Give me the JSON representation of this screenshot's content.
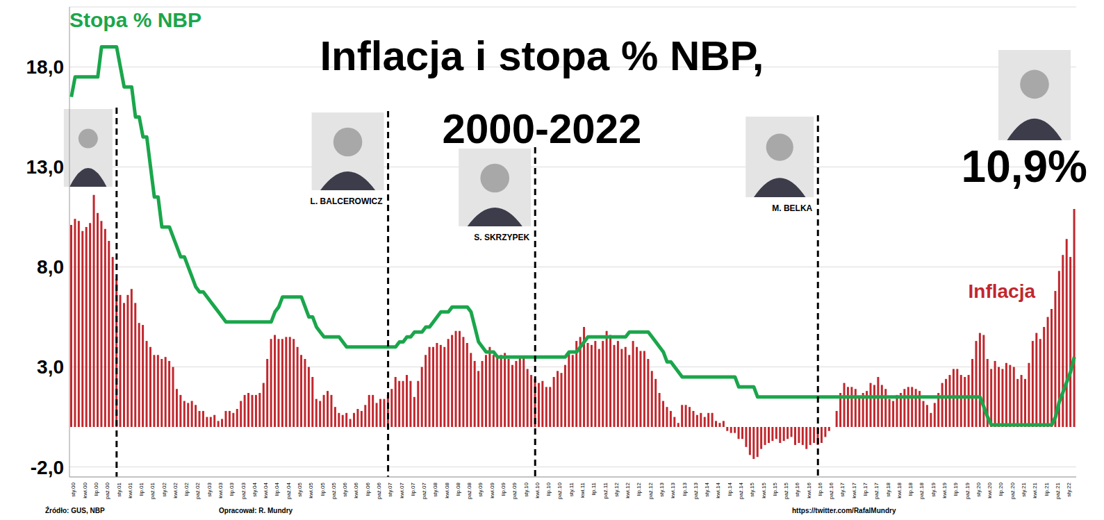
{
  "chart_data": {
    "type": "bar",
    "title": "Inflacja i stopa % NBP, 2000-2022",
    "categories": [
      "sty.00",
      null,
      null,
      "kwi.00",
      null,
      null,
      "lip.00",
      null,
      null,
      "paź.00",
      null,
      null,
      "sty.01",
      null,
      null,
      "kwi.01",
      null,
      null,
      "lip.01",
      null,
      null,
      "paź.01",
      null,
      null,
      "sty.02",
      null,
      null,
      "kwi.02",
      null,
      null,
      "lip.02",
      null,
      null,
      "paź.02",
      null,
      null,
      "sty.03",
      null,
      null,
      "kwi.03",
      null,
      null,
      "lip.03",
      null,
      null,
      "paź.03",
      null,
      null,
      "sty.04",
      null,
      null,
      "kwi.04",
      null,
      null,
      "lip.04",
      null,
      null,
      "paź.04",
      null,
      null,
      "sty.05",
      null,
      null,
      "kwi.05",
      null,
      null,
      "lip.05",
      null,
      null,
      "paź.05",
      null,
      null,
      "sty.06",
      null,
      null,
      "kwi.06",
      null,
      null,
      "lip.06",
      null,
      null,
      "paź.06",
      null,
      null,
      "sty.07",
      null,
      null,
      "kwi.07",
      null,
      null,
      "lip.07",
      null,
      null,
      "paź.07",
      null,
      null,
      "sty.08",
      null,
      null,
      "kwi.08",
      null,
      null,
      "lip.08",
      null,
      null,
      "paź.08",
      null,
      null,
      "sty.09",
      null,
      null,
      "kwi.09",
      null,
      null,
      "lip.09",
      null,
      null,
      "paź.09",
      null,
      null,
      "sty.10",
      null,
      null,
      "kwi.10",
      null,
      null,
      "lip.10",
      null,
      null,
      "paź.10",
      null,
      null,
      "sty.11",
      null,
      null,
      "kwi.11",
      null,
      null,
      "lip.11",
      null,
      null,
      "paź.11",
      null,
      null,
      "sty.12",
      null,
      null,
      "kwi.12",
      null,
      null,
      "lip.12",
      null,
      null,
      "paź.12",
      null,
      null,
      "sty.13",
      null,
      null,
      "kwi.13",
      null,
      null,
      "lip.13",
      null,
      null,
      "paź.13",
      null,
      null,
      "sty.14",
      null,
      null,
      "kwi.14",
      null,
      null,
      "lip.14",
      null,
      null,
      "paź.14",
      null,
      null,
      "sty.15",
      null,
      null,
      "kwi.15",
      null,
      null,
      "lip.15",
      null,
      null,
      "paź.15",
      null,
      null,
      "sty.16",
      null,
      null,
      "kwi.16",
      null,
      null,
      "lip.16",
      null,
      null,
      "paź.16",
      null,
      null,
      "sty.17",
      null,
      null,
      "kwi.17",
      null,
      null,
      "lip.17",
      null,
      null,
      "paź.17",
      null,
      null,
      "sty.18",
      null,
      null,
      "kwi.18",
      null,
      null,
      "lip.18",
      null,
      null,
      "paź.18",
      null,
      null,
      "sty.19",
      null,
      null,
      "kwi.19",
      null,
      null,
      "lip.19",
      null,
      null,
      "paź.19",
      null,
      null,
      "sty.20",
      null,
      null,
      "kwi.20",
      null,
      null,
      "lip.20",
      null,
      null,
      "paź.20",
      null,
      null,
      "sty.21",
      null,
      null,
      "kwi.21",
      null,
      null,
      "lip.21",
      null,
      null,
      "paź.21",
      null,
      null,
      "sty.22",
      null,
      null
    ],
    "series": [
      {
        "name": "Inflacja",
        "type": "bar",
        "color": "#c1272d",
        "values": [
          10.1,
          10.4,
          10.3,
          9.8,
          10.0,
          10.2,
          11.6,
          10.7,
          10.3,
          9.9,
          9.3,
          8.5,
          7.4,
          6.6,
          6.2,
          6.6,
          6.9,
          6.2,
          5.2,
          5.1,
          4.3,
          4.0,
          3.6,
          3.6,
          3.4,
          3.5,
          3.3,
          3.0,
          1.9,
          1.6,
          1.3,
          1.2,
          1.3,
          1.1,
          0.8,
          0.8,
          0.5,
          0.5,
          0.6,
          0.3,
          0.4,
          0.8,
          0.8,
          0.7,
          0.9,
          1.3,
          1.6,
          1.7,
          1.6,
          1.6,
          1.7,
          2.2,
          3.4,
          4.4,
          4.6,
          4.4,
          4.4,
          4.5,
          4.5,
          4.4,
          4.0,
          3.6,
          3.4,
          3.0,
          2.5,
          1.4,
          1.3,
          1.6,
          1.8,
          1.6,
          1.0,
          0.7,
          0.6,
          0.7,
          0.4,
          0.7,
          0.9,
          0.8,
          1.1,
          1.6,
          1.6,
          1.2,
          1.4,
          1.4,
          1.6,
          1.9,
          2.5,
          2.3,
          2.3,
          2.6,
          2.3,
          1.5,
          2.3,
          3.0,
          3.6,
          4.0,
          4.0,
          4.2,
          4.1,
          4.0,
          4.4,
          4.6,
          4.8,
          4.8,
          4.5,
          4.2,
          3.7,
          3.3,
          2.8,
          3.3,
          3.6,
          4.0,
          3.6,
          3.5,
          3.6,
          3.7,
          3.4,
          3.1,
          3.3,
          3.5,
          3.5,
          2.9,
          2.6,
          2.4,
          2.2,
          2.3,
          2.0,
          2.0,
          2.5,
          2.8,
          2.7,
          3.1,
          3.8,
          3.6,
          4.3,
          4.5,
          5.0,
          4.2,
          4.1,
          4.3,
          3.9,
          4.3,
          4.8,
          4.6,
          4.1,
          4.3,
          3.9,
          4.0,
          3.6,
          4.3,
          4.0,
          3.8,
          3.8,
          3.4,
          2.8,
          2.4,
          1.7,
          1.3,
          1.0,
          0.8,
          0.5,
          0.2,
          1.1,
          1.1,
          1.0,
          0.8,
          0.6,
          0.7,
          0.5,
          0.7,
          0.7,
          0.3,
          0.2,
          0.3,
          -0.2,
          -0.3,
          -0.3,
          -0.6,
          -0.6,
          -1.0,
          -1.4,
          -1.6,
          -1.5,
          -1.1,
          -0.9,
          -0.8,
          -0.7,
          -0.6,
          -0.8,
          -0.7,
          -0.6,
          -0.5,
          -0.9,
          -0.8,
          -0.9,
          -1.1,
          -0.9,
          -0.8,
          -0.9,
          -0.8,
          -0.5,
          -0.2,
          0.0,
          0.8,
          1.7,
          2.2,
          2.0,
          2.0,
          1.9,
          1.5,
          1.7,
          1.8,
          2.2,
          2.1,
          2.5,
          2.1,
          1.9,
          1.4,
          1.3,
          1.6,
          1.7,
          1.9,
          2.0,
          2.0,
          1.9,
          1.8,
          1.3,
          1.1,
          0.7,
          1.2,
          1.7,
          2.2,
          2.4,
          2.6,
          2.9,
          2.9,
          2.6,
          2.5,
          2.6,
          3.4,
          4.3,
          4.7,
          4.6,
          3.4,
          2.9,
          3.3,
          3.0,
          2.9,
          3.2,
          3.1,
          3.0,
          2.4,
          2.6,
          2.4,
          3.2,
          4.3,
          4.7,
          4.4,
          5.0,
          5.5,
          5.9,
          6.8,
          7.8,
          8.6,
          9.4,
          8.5,
          10.9
        ]
      },
      {
        "name": "Stopa % NBP",
        "type": "line",
        "color": "#1aa64b",
        "values": [
          16.5,
          17.5,
          17.5,
          17.5,
          17.5,
          17.5,
          17.5,
          17.5,
          19,
          19,
          19,
          19,
          19,
          18,
          17,
          17,
          17,
          15.5,
          15.5,
          14.5,
          14.5,
          13,
          11.5,
          11.5,
          10,
          10,
          10,
          9.5,
          9,
          8.5,
          8.5,
          8,
          7.5,
          7,
          6.75,
          6.75,
          6.5,
          6.25,
          6,
          5.75,
          5.5,
          5.25,
          5.25,
          5.25,
          5.25,
          5.25,
          5.25,
          5.25,
          5.25,
          5.25,
          5.25,
          5.25,
          5.25,
          5.25,
          5.75,
          6,
          6.5,
          6.5,
          6.5,
          6.5,
          6.5,
          6.5,
          6,
          5.5,
          5.5,
          5,
          4.75,
          4.5,
          4.5,
          4.5,
          4.5,
          4.5,
          4.25,
          4,
          4,
          4,
          4,
          4,
          4,
          4,
          4,
          4,
          4,
          4,
          4,
          4,
          4,
          4.25,
          4.25,
          4.5,
          4.5,
          4.75,
          4.75,
          4.75,
          5,
          5,
          5.25,
          5.5,
          5.75,
          5.75,
          5.75,
          6,
          6,
          6,
          6,
          6,
          5.75,
          5,
          4.25,
          4,
          3.75,
          3.75,
          3.75,
          3.5,
          3.5,
          3.5,
          3.5,
          3.5,
          3.5,
          3.5,
          3.5,
          3.5,
          3.5,
          3.5,
          3.5,
          3.5,
          3.5,
          3.5,
          3.5,
          3.5,
          3.5,
          3.5,
          3.75,
          3.75,
          3.75,
          4,
          4.25,
          4.5,
          4.5,
          4.5,
          4.5,
          4.5,
          4.5,
          4.5,
          4.5,
          4.5,
          4.5,
          4.5,
          4.75,
          4.75,
          4.75,
          4.75,
          4.75,
          4.75,
          4.5,
          4.25,
          4,
          3.75,
          3.25,
          3.25,
          3,
          2.75,
          2.5,
          2.5,
          2.5,
          2.5,
          2.5,
          2.5,
          2.5,
          2.5,
          2.5,
          2.5,
          2.5,
          2.5,
          2.5,
          2.5,
          2.5,
          2,
          2,
          2,
          2,
          2,
          1.5,
          1.5,
          1.5,
          1.5,
          1.5,
          1.5,
          1.5,
          1.5,
          1.5,
          1.5,
          1.5,
          1.5,
          1.5,
          1.5,
          1.5,
          1.5,
          1.5,
          1.5,
          1.5,
          1.5,
          1.5,
          1.5,
          1.5,
          1.5,
          1.5,
          1.5,
          1.5,
          1.5,
          1.5,
          1.5,
          1.5,
          1.5,
          1.5,
          1.5,
          1.5,
          1.5,
          1.5,
          1.5,
          1.5,
          1.5,
          1.5,
          1.5,
          1.5,
          1.5,
          1.5,
          1.5,
          1.5,
          1.5,
          1.5,
          1.5,
          1.5,
          1.5,
          1.5,
          1.5,
          1.5,
          1.5,
          1.5,
          1.5,
          1.5,
          1.5,
          1,
          0.5,
          0.1,
          0.1,
          0.1,
          0.1,
          0.1,
          0.1,
          0.1,
          0.1,
          0.1,
          0.1,
          0.1,
          0.1,
          0.1,
          0.1,
          0.1,
          0.1,
          0.1,
          0.5,
          1.25,
          1.75,
          2.25,
          2.75,
          3.5
        ]
      }
    ],
    "ylim": [
      -2.5,
      21
    ],
    "yticks": [
      {
        "value": -2,
        "label": "-2,0"
      },
      {
        "value": 3,
        "label": "3,0"
      },
      {
        "value": 8,
        "label": "8,0"
      },
      {
        "value": 13,
        "label": "13,0"
      },
      {
        "value": 18,
        "label": "18,0"
      }
    ],
    "grid": true,
    "annotations": [
      {
        "x": "sty.01"
      },
      {
        "x": "sty.07",
        "label": "L. BALCEROWICZ"
      },
      {
        "x": "kwi.10",
        "label": "S. SKRZYPEK"
      },
      {
        "x": "lip.16",
        "label": "M. BELKA"
      }
    ],
    "callout": "10,9%",
    "source": "Źródło: GUS, NBP",
    "author": "Opracował: R. Mundry",
    "url": "https://twitter.com/RafalMundry"
  }
}
